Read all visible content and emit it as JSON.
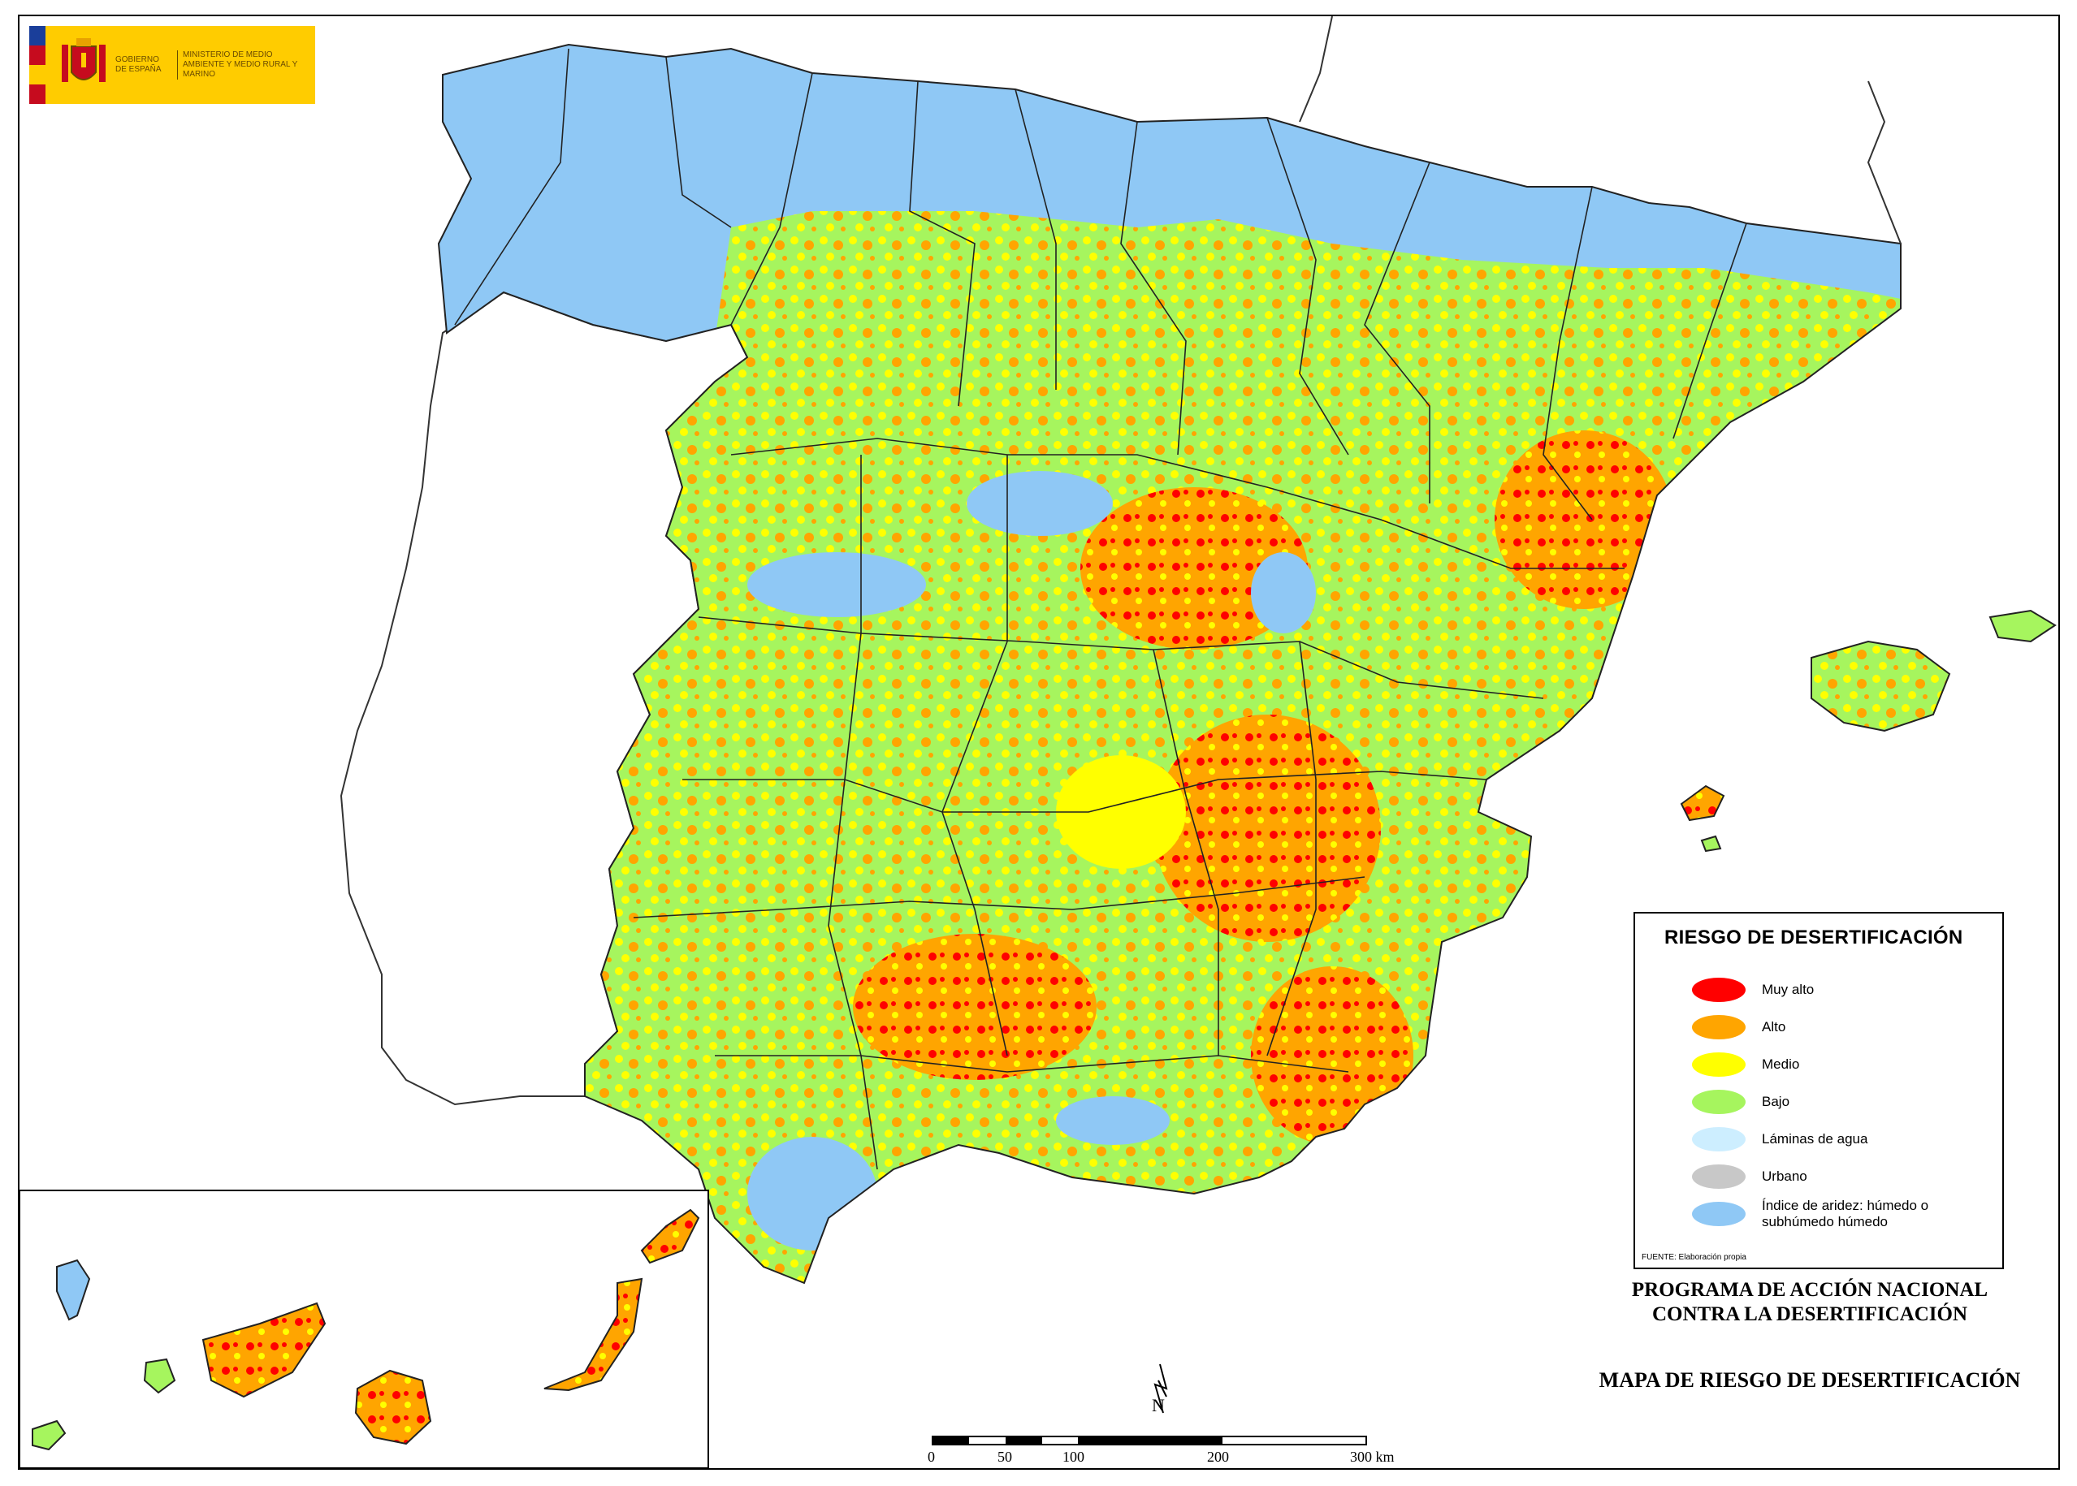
{
  "logo": {
    "government": "GOBIERNO DE ESPAÑA",
    "ministry": "MINISTERIO DE MEDIO AMBIENTE Y MEDIO RURAL Y MARINO",
    "colors": {
      "background": "#ffcc00",
      "flag_red": "#c60b1e",
      "flag_blue": "#1a3e9a"
    }
  },
  "legend": {
    "title": "RIESGO DE DESERTIFICACIÓN",
    "items": [
      {
        "label": "Muy alto",
        "color": "#ff0000"
      },
      {
        "label": "Alto",
        "color": "#ffa500"
      },
      {
        "label": "Medio",
        "color": "#ffff00"
      },
      {
        "label": "Bajo",
        "color": "#a6f55e"
      },
      {
        "label": "Láminas de agua",
        "color": "#cdeeff"
      },
      {
        "label": "Urbano",
        "color": "#c8c8c8"
      },
      {
        "label": "Índice de aridez: húmedo o subhúmedo húmedo",
        "color": "#8fc8f5"
      }
    ],
    "source": "FUENTE: Elaboración propia"
  },
  "program_title": "PROGRAMA DE ACCIÓN NACIONAL CONTRA LA DESERTIFICACIÓN",
  "map_title": "MAPA DE RIESGO DE DESERTIFICACIÓN",
  "scale_bar": {
    "labels": [
      "0",
      "50",
      "100",
      "200",
      "300 km"
    ],
    "max_km": 300
  },
  "north_label": "N"
}
